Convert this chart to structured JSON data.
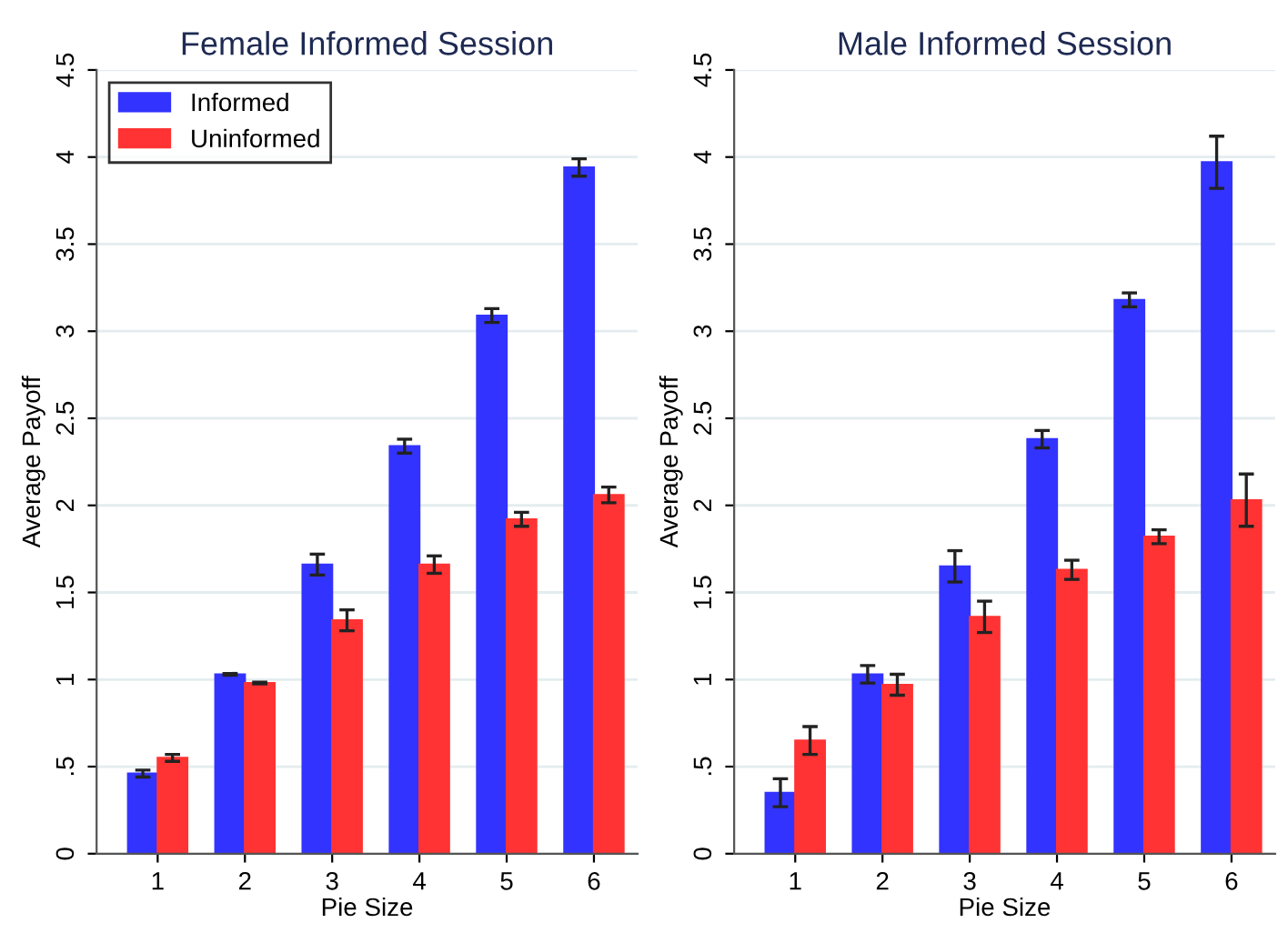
{
  "chart_data": [
    {
      "type": "bar",
      "title": "Female Informed Session",
      "xlabel": "Pie Size",
      "ylabel": "Average Payoff",
      "categories": [
        "1",
        "2",
        "3",
        "4",
        "5",
        "6"
      ],
      "series": [
        {
          "name": "Informed",
          "color": "#3333ff",
          "values": [
            0.46,
            1.03,
            1.66,
            2.34,
            3.09,
            3.94
          ],
          "errors": [
            0.02,
            0.005,
            0.06,
            0.04,
            0.04,
            0.05
          ]
        },
        {
          "name": "Uninformed",
          "color": "#ff3333",
          "values": [
            0.55,
            0.98,
            1.34,
            1.66,
            1.92,
            2.06
          ],
          "errors": [
            0.02,
            0.005,
            0.06,
            0.05,
            0.04,
            0.045
          ]
        }
      ],
      "ylim": [
        0,
        4.5
      ],
      "yticks": [
        0,
        {
          "value": 0.5,
          "label": ".5"
        },
        1,
        1.5,
        2,
        2.5,
        3,
        3.5,
        4,
        4.5
      ],
      "grid": "y",
      "legend": "top left"
    },
    {
      "type": "bar",
      "title": "Male Informed Session",
      "xlabel": "Pie Size",
      "ylabel": "Average Payoff",
      "categories": [
        "1",
        "2",
        "3",
        "4",
        "5",
        "6"
      ],
      "series": [
        {
          "color": "#3333ff",
          "values": [
            0.35,
            1.03,
            1.65,
            2.38,
            3.18,
            3.97
          ],
          "errors": [
            0.08,
            0.05,
            0.09,
            0.05,
            0.04,
            0.15
          ]
        },
        {
          "color": "#ff3333",
          "values": [
            0.65,
            0.97,
            1.36,
            1.63,
            1.82,
            2.03
          ],
          "errors": [
            0.08,
            0.06,
            0.09,
            0.055,
            0.04,
            0.15
          ]
        }
      ],
      "ylim": [
        0,
        4.5
      ],
      "yticks": [
        0,
        {
          "value": 0.5,
          "label": ".5"
        },
        1,
        1.5,
        2,
        2.5,
        3,
        3.5,
        4,
        4.5
      ],
      "grid": "y",
      "legend": false
    }
  ]
}
